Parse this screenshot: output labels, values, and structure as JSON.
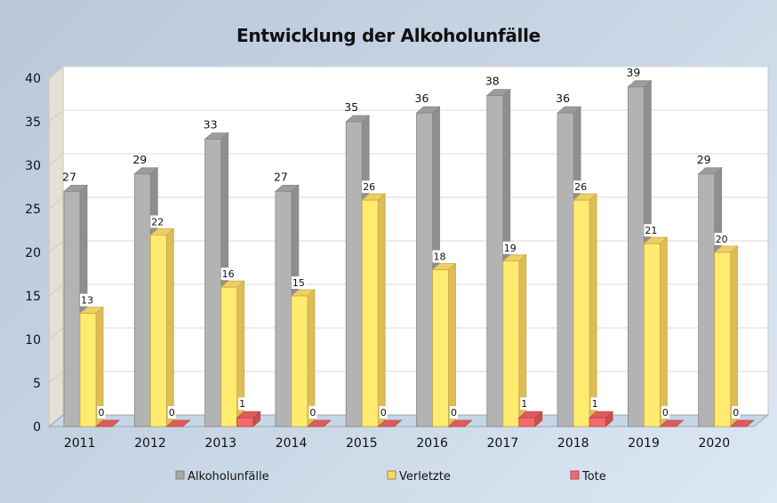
{
  "chart_data": {
    "type": "bar",
    "title": "Entwicklung der Alkoholunfälle",
    "xlabel": "",
    "ylabel": "",
    "categories": [
      "2011",
      "2012",
      "2013",
      "2014",
      "2015",
      "2016",
      "2017",
      "2018",
      "2019",
      "2020"
    ],
    "series": [
      {
        "name": "Alkoholunfälle",
        "color": "#b3b3b3",
        "values": [
          27,
          29,
          33,
          27,
          35,
          36,
          38,
          36,
          39,
          29
        ]
      },
      {
        "name": "Verletzte",
        "color": "#ffeb70",
        "values": [
          13,
          22,
          16,
          15,
          26,
          18,
          19,
          26,
          21,
          20
        ]
      },
      {
        "name": "Tote",
        "color": "#f26b6b",
        "values": [
          0,
          0,
          1,
          0,
          0,
          0,
          1,
          1,
          0,
          0
        ]
      }
    ],
    "ylim": [
      0,
      40
    ],
    "yticks": [
      0,
      5,
      10,
      15,
      20,
      25,
      30,
      35,
      40
    ],
    "grid": true,
    "data_labels": true,
    "style": "3d-clustered-column",
    "legend": {
      "position": "bottom"
    }
  }
}
